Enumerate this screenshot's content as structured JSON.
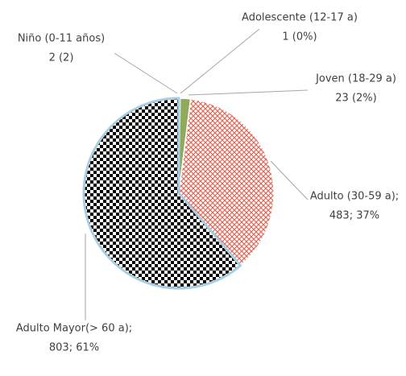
{
  "chart_data": {
    "type": "pie",
    "categories": [
      "Niño (0-11 años)",
      "Adolescente (12-17 a)",
      "Joven (18-29 a)",
      "Adulto (30-59 a);",
      "Adulto Mayor(> 60 a);"
    ],
    "values": [
      2,
      1,
      23,
      483,
      803
    ],
    "value_labels": [
      "2 (2)",
      "1 (0%)",
      "23 (2%)",
      "483; 37%",
      "803; 61%"
    ],
    "colors": [
      "#4f81bd",
      "#9bbb59",
      "#8faa5a",
      "#e06a5a",
      "#000000"
    ]
  }
}
